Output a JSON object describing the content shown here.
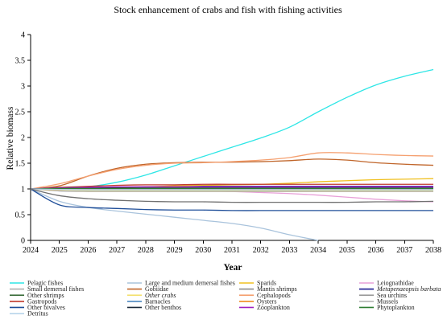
{
  "chart_data": {
    "type": "line",
    "title": "Stock enhancement of crabs and fish with fishing activities",
    "xlabel": "Year",
    "ylabel": "Relative biomass",
    "x": [
      "2024",
      "2025",
      "2026",
      "2027",
      "2028",
      "2029",
      "2030",
      "2031",
      "2032",
      "2033",
      "2034",
      "2035",
      "2036",
      "2037",
      "2038"
    ],
    "ylim": [
      0,
      4
    ],
    "yticks": [
      "0",
      "0.5",
      "1",
      "1.5",
      "2",
      "2.5",
      "3",
      "3.5",
      "4"
    ],
    "grid": false,
    "legend_position": "bottom",
    "series": [
      {
        "name": "Pelagic fishes",
        "color": "#2ee6e6",
        "italic": false,
        "values": [
          1.0,
          1.0,
          1.04,
          1.13,
          1.27,
          1.45,
          1.63,
          1.81,
          1.99,
          2.2,
          2.5,
          2.78,
          3.02,
          3.19,
          3.32
        ]
      },
      {
        "name": "Large and medium demersal fishes",
        "color": "#a9c3dc",
        "italic": false,
        "values": [
          1.0,
          0.76,
          0.64,
          0.57,
          0.51,
          0.45,
          0.39,
          0.33,
          0.24,
          0.11,
          0.0,
          null,
          null,
          null,
          null
        ]
      },
      {
        "name": "Sparids",
        "color": "#f0c020",
        "italic": false,
        "values": [
          1.0,
          0.99,
          1.0,
          1.02,
          1.04,
          1.06,
          1.07,
          1.08,
          1.09,
          1.11,
          1.14,
          1.16,
          1.18,
          1.19,
          1.2
        ]
      },
      {
        "name": "Leiognathidae",
        "color": "#e8a0d8",
        "italic": false,
        "values": [
          1.0,
          0.98,
          0.97,
          0.96,
          0.96,
          0.96,
          0.96,
          0.95,
          0.93,
          0.91,
          0.88,
          0.84,
          0.8,
          0.77,
          0.75
        ]
      },
      {
        "name": "Small demersal fishes",
        "color": "#b0b0b0",
        "italic": false,
        "values": [
          1.0,
          0.96,
          0.95,
          0.95,
          0.95,
          0.95,
          0.95,
          0.95,
          0.95,
          0.95,
          0.95,
          0.95,
          0.95,
          0.95,
          0.95
        ]
      },
      {
        "name": "Gobiidae",
        "color": "#c0652a",
        "italic": false,
        "values": [
          1.0,
          1.06,
          1.25,
          1.4,
          1.48,
          1.51,
          1.52,
          1.52,
          1.53,
          1.55,
          1.58,
          1.56,
          1.51,
          1.48,
          1.46
        ]
      },
      {
        "name": "Mantis shrimps",
        "color": "#8c8c8c",
        "italic": false,
        "values": [
          1.0,
          1.0,
          1.0,
          1.0,
          1.0,
          1.0,
          1.0,
          1.0,
          1.0,
          1.0,
          1.0,
          1.0,
          1.0,
          1.0,
          1.0
        ]
      },
      {
        "name": "Metapenaeopsis barbata",
        "color": "#1a1a90",
        "italic": true,
        "values": [
          1.0,
          1.01,
          1.02,
          1.03,
          1.04,
          1.04,
          1.05,
          1.05,
          1.05,
          1.05,
          1.05,
          1.05,
          1.05,
          1.05,
          1.05
        ]
      },
      {
        "name": "Other shrimps",
        "color": "#3c6e3c",
        "italic": false,
        "values": [
          1.0,
          0.99,
          0.99,
          0.98,
          0.98,
          0.98,
          0.98,
          0.98,
          0.98,
          0.98,
          0.98,
          0.98,
          0.98,
          0.98,
          0.98
        ]
      },
      {
        "name": "Other crabs",
        "color": "#f4e070",
        "italic": true,
        "values": [
          1.0,
          0.98,
          0.97,
          0.97,
          0.97,
          0.97,
          0.97,
          0.97,
          0.97,
          0.97,
          0.97,
          0.97,
          0.97,
          0.97,
          0.97
        ]
      },
      {
        "name": "Cephalopods",
        "color": "#f5a070",
        "italic": false,
        "values": [
          1.0,
          1.1,
          1.25,
          1.38,
          1.46,
          1.5,
          1.51,
          1.53,
          1.56,
          1.61,
          1.7,
          1.7,
          1.67,
          1.65,
          1.64
        ]
      },
      {
        "name": "Sea urchins",
        "color": "#9a9a9a",
        "italic": false,
        "values": [
          1.0,
          1.0,
          1.0,
          1.0,
          1.0,
          1.0,
          1.0,
          1.0,
          1.0,
          1.0,
          1.0,
          1.0,
          1.0,
          1.0,
          1.0
        ]
      },
      {
        "name": "Gastropods",
        "color": "#c0392b",
        "italic": false,
        "values": [
          1.0,
          1.03,
          1.05,
          1.07,
          1.08,
          1.08,
          1.09,
          1.09,
          1.09,
          1.09,
          1.09,
          1.09,
          1.09,
          1.09,
          1.09
        ]
      },
      {
        "name": "Barnacles",
        "color": "#4a86c0",
        "italic": false,
        "values": [
          1.0,
          1.0,
          1.0,
          1.0,
          1.0,
          1.0,
          1.0,
          1.0,
          1.0,
          1.0,
          1.0,
          1.0,
          1.0,
          1.0,
          1.0
        ]
      },
      {
        "name": "Oysters",
        "color": "#f08a1c",
        "italic": false,
        "values": [
          1.0,
          0.99,
          0.99,
          0.99,
          0.99,
          0.99,
          1.0,
          1.0,
          1.0,
          1.0,
          1.0,
          1.0,
          1.0,
          1.0,
          1.0
        ]
      },
      {
        "name": "Mussels",
        "color": "#b5b5b5",
        "italic": false,
        "values": [
          1.0,
          0.99,
          0.99,
          0.99,
          0.99,
          0.99,
          0.99,
          0.99,
          0.99,
          0.99,
          0.99,
          0.99,
          0.99,
          0.99,
          0.99
        ]
      },
      {
        "name": "Other bivalves",
        "color": "#1f4e99",
        "italic": false,
        "values": [
          1.0,
          0.69,
          0.64,
          0.62,
          0.6,
          0.59,
          0.59,
          0.58,
          0.58,
          0.58,
          0.58,
          0.58,
          0.58,
          0.58,
          0.58
        ]
      },
      {
        "name": "Other benthos",
        "color": "#1b2a3a",
        "italic": false,
        "values": [
          1.0,
          1.02,
          1.03,
          1.03,
          1.03,
          1.03,
          1.03,
          1.03,
          1.03,
          1.03,
          1.03,
          1.03,
          1.03,
          1.03,
          1.03
        ]
      },
      {
        "name": "Zooplankton",
        "color": "#a020c0",
        "italic": false,
        "values": [
          1.0,
          1.02,
          1.03,
          1.04,
          1.04,
          1.04,
          1.04,
          1.04,
          1.04,
          1.04,
          1.04,
          1.04,
          1.04,
          1.04,
          1.04
        ]
      },
      {
        "name": "Phytoplankton",
        "color": "#2e7d32",
        "italic": false,
        "values": [
          1.0,
          1.01,
          1.01,
          1.01,
          1.01,
          1.01,
          1.01,
          1.01,
          1.01,
          1.01,
          1.01,
          1.01,
          1.01,
          1.01,
          1.01
        ]
      },
      {
        "name": "Detritus",
        "color": "#b0d0e8",
        "italic": false,
        "values": [
          1.0,
          0.99,
          0.98,
          0.98,
          0.98,
          0.98,
          0.98,
          0.98,
          0.98,
          0.98,
          0.98,
          0.98,
          0.98,
          0.98,
          0.98
        ]
      },
      {
        "name": "",
        "color": "#707070",
        "italic": false,
        "values": [
          1.0,
          0.87,
          0.81,
          0.78,
          0.76,
          0.75,
          0.75,
          0.74,
          0.74,
          0.74,
          0.74,
          0.74,
          0.75,
          0.75,
          0.76
        ]
      }
    ]
  }
}
